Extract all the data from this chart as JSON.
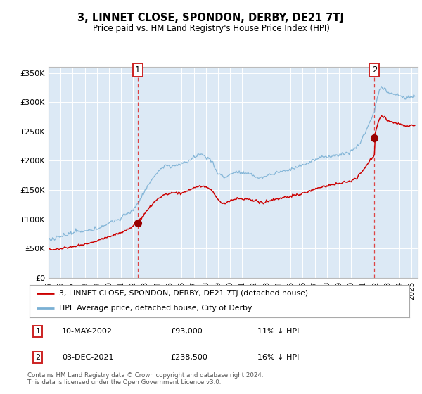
{
  "title": "3, LINNET CLOSE, SPONDON, DERBY, DE21 7TJ",
  "subtitle": "Price paid vs. HM Land Registry's House Price Index (HPI)",
  "legend_line1": "3, LINNET CLOSE, SPONDON, DERBY, DE21 7TJ (detached house)",
  "legend_line2": "HPI: Average price, detached house, City of Derby",
  "footnote": "Contains HM Land Registry data © Crown copyright and database right 2024.\nThis data is licensed under the Open Government Licence v3.0.",
  "transaction1_date": "10-MAY-2002",
  "transaction1_price": "£93,000",
  "transaction1_hpi": "11% ↓ HPI",
  "transaction2_date": "03-DEC-2021",
  "transaction2_price": "£238,500",
  "transaction2_hpi": "16% ↓ HPI",
  "ylim": [
    0,
    360000
  ],
  "xlim_start": 1995.0,
  "xlim_end": 2025.5,
  "transaction1_year": 2002.36,
  "transaction1_value": 93000,
  "transaction2_year": 2021.92,
  "transaction2_value": 238500,
  "background_color": "#dce9f5",
  "red_color": "#cc0000",
  "blue_color": "#7ab0d4"
}
